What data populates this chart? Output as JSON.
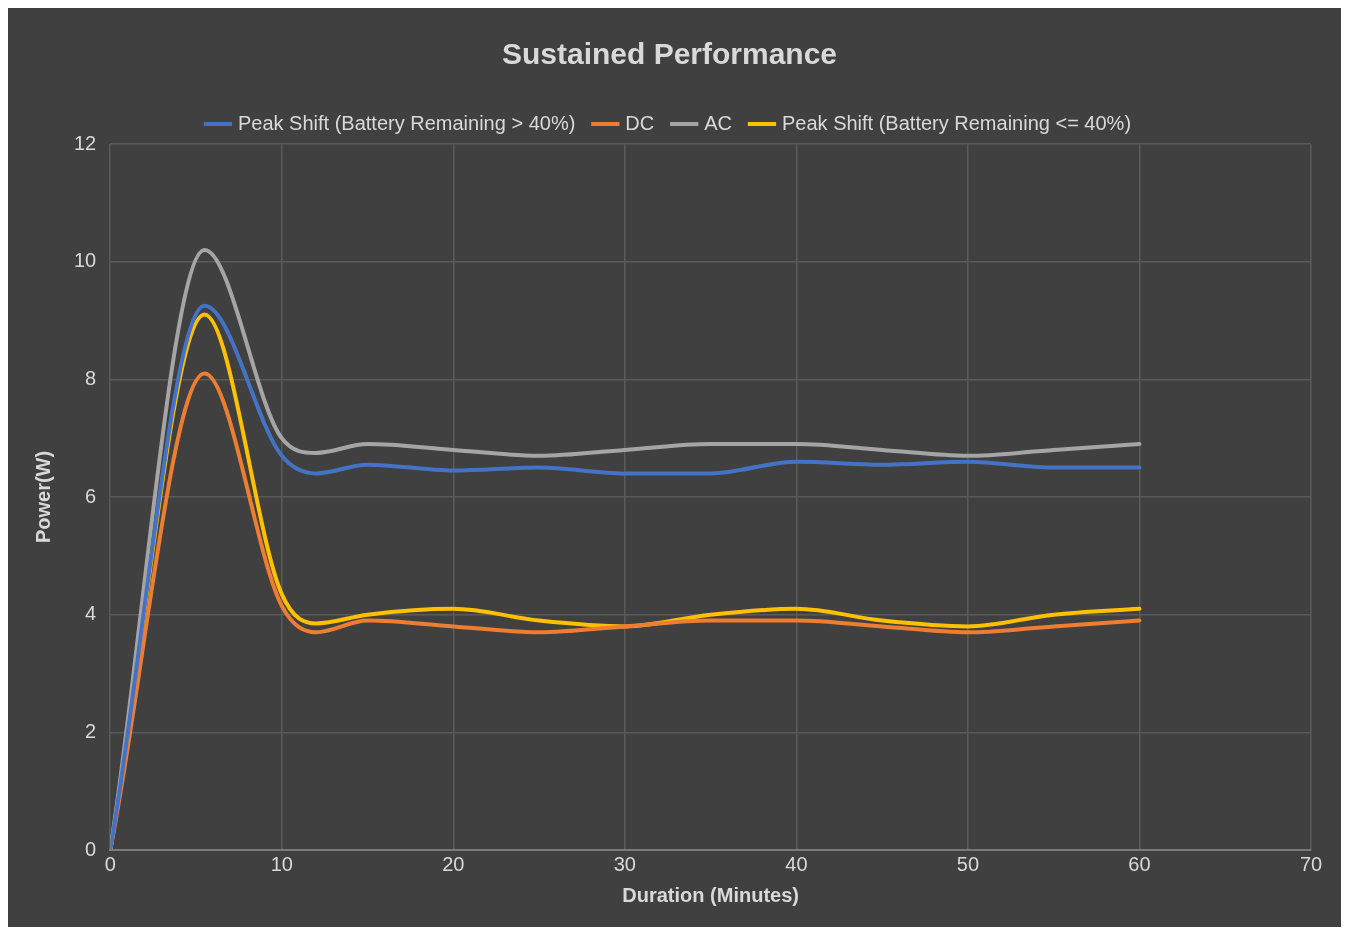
{
  "chart_data": {
    "type": "line",
    "title": "Sustained Performance",
    "xlabel": "Duration (Minutes)",
    "ylabel": "Power(W)",
    "x": [
      0,
      5.5,
      10,
      12,
      15,
      20,
      25,
      30,
      35,
      40,
      45,
      50,
      55,
      60
    ],
    "series": [
      {
        "name": "Peak Shift (Battery Remaining > 40%)",
        "color": "#4472c4",
        "values": [
          0,
          9.25,
          6.7,
          6.4,
          6.55,
          6.45,
          6.5,
          6.4,
          6.4,
          6.6,
          6.55,
          6.6,
          6.5,
          6.5
        ]
      },
      {
        "name": "DC",
        "color": "#ed7d31",
        "values": [
          0,
          8.1,
          4.15,
          3.7,
          3.9,
          3.8,
          3.7,
          3.8,
          3.9,
          3.9,
          3.8,
          3.7,
          3.8,
          3.9
        ]
      },
      {
        "name": "AC",
        "color": "#a5a5a5",
        "values": [
          0,
          10.2,
          7.0,
          6.75,
          6.9,
          6.8,
          6.7,
          6.8,
          6.9,
          6.9,
          6.8,
          6.7,
          6.8,
          6.9
        ]
      },
      {
        "name": "Peak Shift (Battery Remaining <= 40%)",
        "color": "#ffc000",
        "values": [
          0,
          9.1,
          4.35,
          3.85,
          4.0,
          4.1,
          3.9,
          3.8,
          4.0,
          4.1,
          3.9,
          3.8,
          4.0,
          4.1
        ]
      }
    ],
    "xlim": [
      0,
      70
    ],
    "xticks": [
      0,
      10,
      20,
      30,
      40,
      50,
      60,
      70
    ],
    "ylim": [
      0,
      12
    ],
    "yticks": [
      0,
      2,
      4,
      6,
      8,
      10,
      12
    ],
    "grid": true,
    "legend": "top",
    "marker": "none",
    "line_style": "solid"
  }
}
